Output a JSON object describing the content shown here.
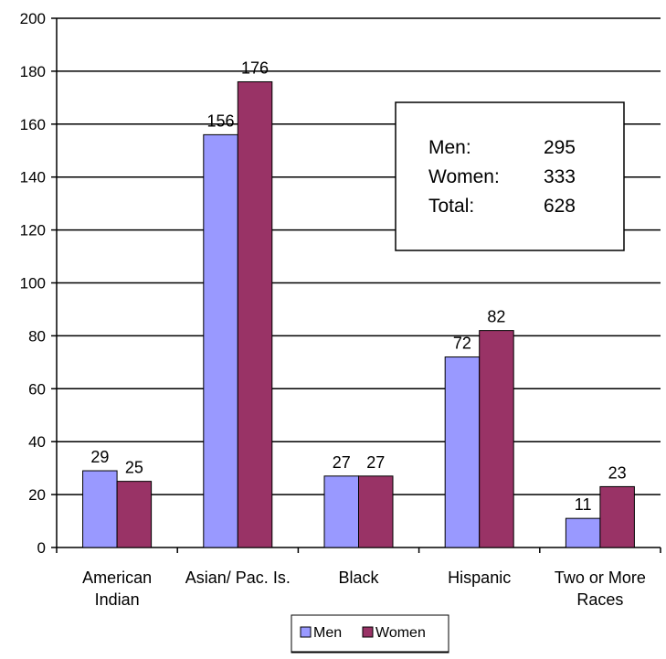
{
  "chart_data": {
    "type": "bar",
    "categories": [
      [
        "American",
        "Indian"
      ],
      [
        "Asian/ Pac. Is."
      ],
      [
        "Black"
      ],
      [
        "Hispanic"
      ],
      [
        "Two or More",
        "Races"
      ]
    ],
    "series": [
      {
        "name": "Men",
        "values": [
          29,
          156,
          27,
          72,
          11
        ],
        "color": "#9999ff"
      },
      {
        "name": "Women",
        "values": [
          25,
          176,
          27,
          82,
          23
        ],
        "color": "#993366"
      }
    ],
    "ylim": [
      0,
      200
    ],
    "yticks": [
      0,
      20,
      40,
      60,
      80,
      100,
      120,
      140,
      160,
      180,
      200
    ],
    "grid": true,
    "legend": "bottom",
    "summary_box": {
      "rows": [
        {
          "label": "Men:",
          "value": "295"
        },
        {
          "label": "Women:",
          "value": "333"
        },
        {
          "label": "Total:",
          "value": "628"
        }
      ]
    }
  }
}
